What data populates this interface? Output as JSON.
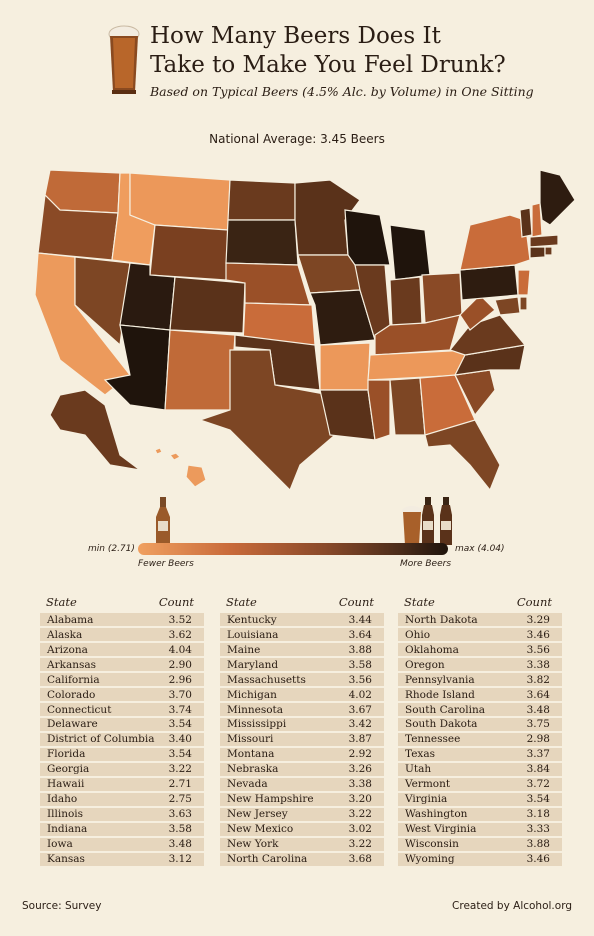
{
  "header": {
    "title_line1": "How Many Beers Does It",
    "title_line2": "Take to Make You Feel Drunk?",
    "subtitle": "Based on Typical Beers (4.5% Alc. by Volume) in One Sitting"
  },
  "national_average": "National Average: 3.45 Beers",
  "legend": {
    "min": "min (2.71)",
    "max": "max (4.04)",
    "fewer": "Fewer Beers",
    "more": "More Beers"
  },
  "footer": {
    "source": "Source: Survey",
    "credit": "Created by Alcohol.org"
  },
  "colors": {
    "light": "#f0a060",
    "dark": "#1f140c",
    "background": "#f6efdf",
    "row": "#e6d6bd"
  },
  "chart_data": {
    "type": "table",
    "columns": [
      "State",
      "Count"
    ],
    "min": 2.71,
    "max": 4.04,
    "national_average": 3.45,
    "rows": [
      [
        "Alabama",
        "3.52"
      ],
      [
        "Alaska",
        "3.62"
      ],
      [
        "Arizona",
        "4.04"
      ],
      [
        "Arkansas",
        "2.90"
      ],
      [
        "California",
        "2.96"
      ],
      [
        "Colorado",
        "3.70"
      ],
      [
        "Connecticut",
        "3.74"
      ],
      [
        "Delaware",
        "3.54"
      ],
      [
        "District of Columbia",
        "3.40"
      ],
      [
        "Florida",
        "3.54"
      ],
      [
        "Georgia",
        "3.22"
      ],
      [
        "Hawaii",
        "2.71"
      ],
      [
        "Idaho",
        "2.75"
      ],
      [
        "Illinois",
        "3.63"
      ],
      [
        "Indiana",
        "3.58"
      ],
      [
        "Iowa",
        "3.48"
      ],
      [
        "Kansas",
        "3.12"
      ],
      [
        "Kentucky",
        "3.44"
      ],
      [
        "Louisiana",
        "3.64"
      ],
      [
        "Maine",
        "3.88"
      ],
      [
        "Maryland",
        "3.58"
      ],
      [
        "Massachusetts",
        "3.56"
      ],
      [
        "Michigan",
        "4.02"
      ],
      [
        "Minnesota",
        "3.67"
      ],
      [
        "Mississippi",
        "3.42"
      ],
      [
        "Missouri",
        "3.87"
      ],
      [
        "Montana",
        "2.92"
      ],
      [
        "Nebraska",
        "3.26"
      ],
      [
        "Nevada",
        "3.38"
      ],
      [
        "New Hampshire",
        "3.20"
      ],
      [
        "New Jersey",
        "3.22"
      ],
      [
        "New Mexico",
        "3.02"
      ],
      [
        "New York",
        "3.22"
      ],
      [
        "North Carolina",
        "3.68"
      ],
      [
        "North Dakota",
        "3.29"
      ],
      [
        "Ohio",
        "3.46"
      ],
      [
        "Oklahoma",
        "3.56"
      ],
      [
        "Oregon",
        "3.38"
      ],
      [
        "Pennsylvania",
        "3.82"
      ],
      [
        "Rhode Island",
        "3.64"
      ],
      [
        "South Carolina",
        "3.48"
      ],
      [
        "South Dakota",
        "3.75"
      ],
      [
        "Tennessee",
        "2.98"
      ],
      [
        "Texas",
        "3.37"
      ],
      [
        "Utah",
        "3.84"
      ],
      [
        "Vermont",
        "3.72"
      ],
      [
        "Virginia",
        "3.54"
      ],
      [
        "Washington",
        "3.18"
      ],
      [
        "West Virginia",
        "3.33"
      ],
      [
        "Wisconsin",
        "3.88"
      ],
      [
        "Wyoming",
        "3.46"
      ]
    ]
  }
}
